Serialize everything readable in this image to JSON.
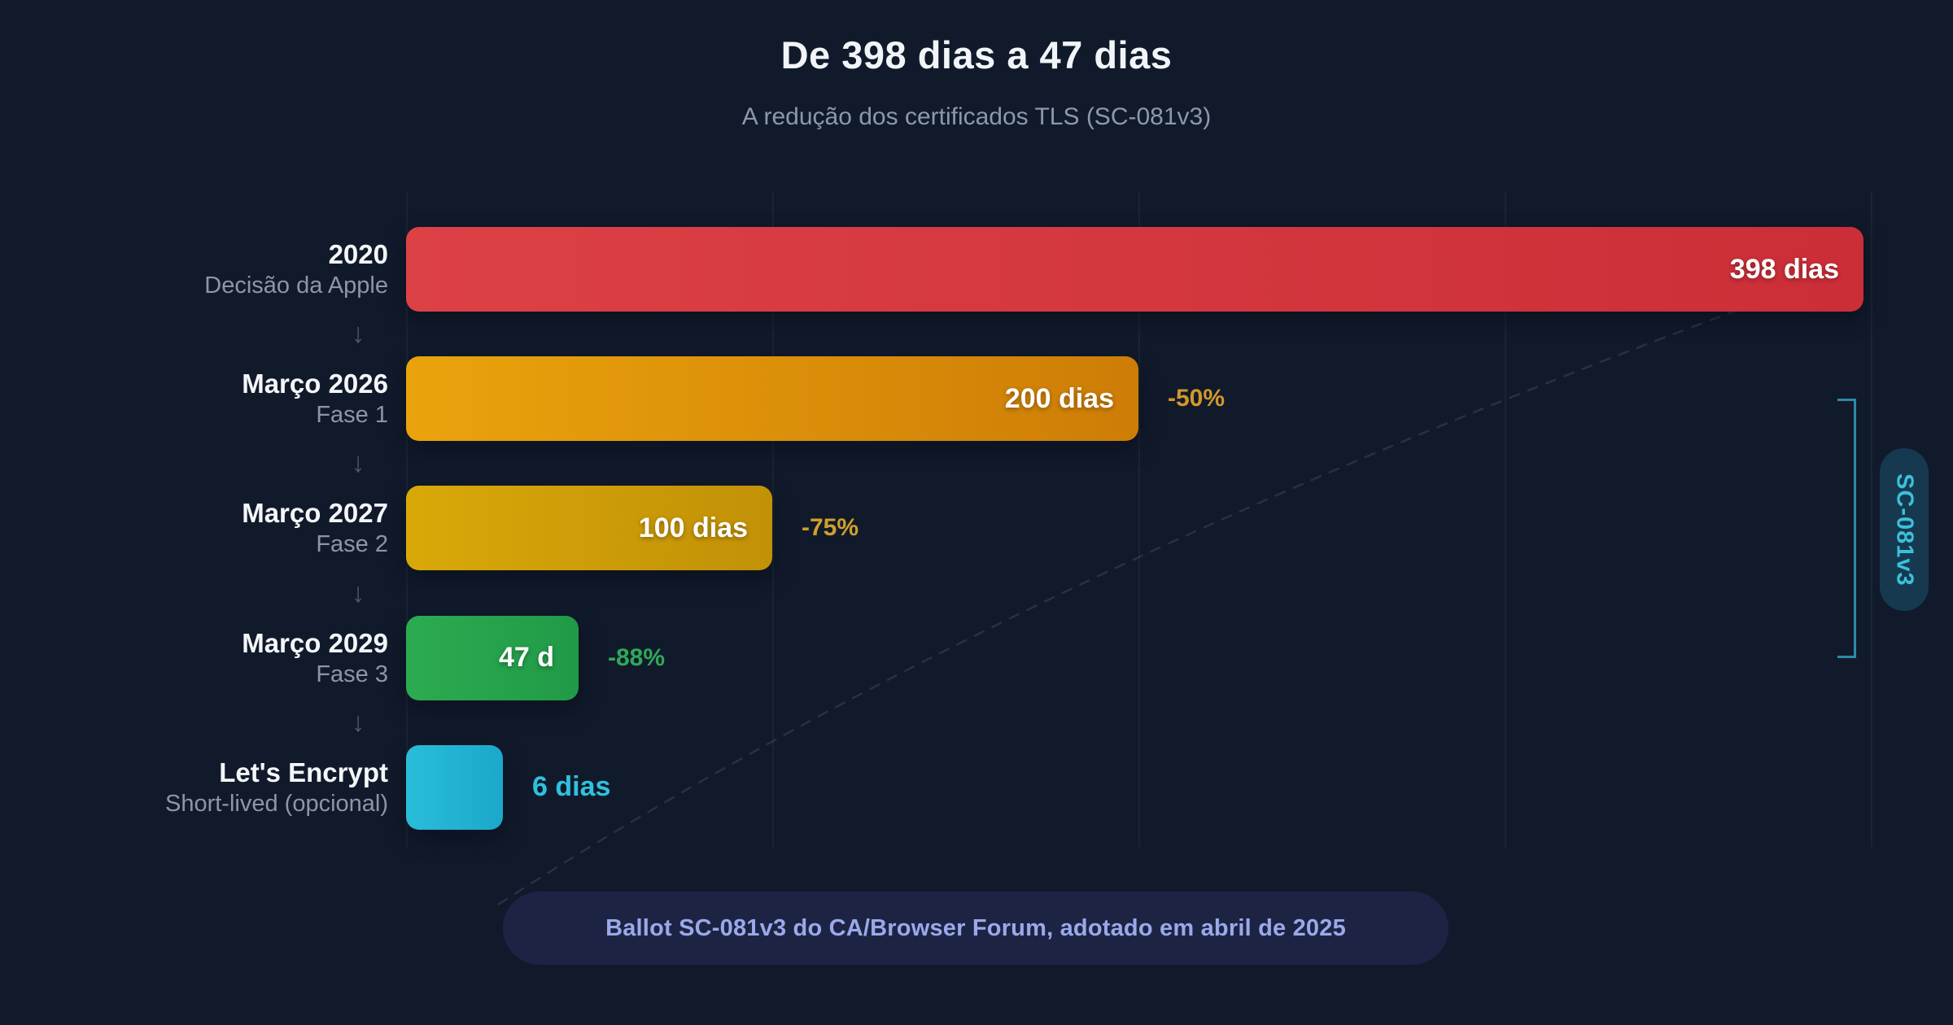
{
  "title": "De 398 dias a 47 dias",
  "subtitle": "A redução dos certificados TLS (SC-081v3)",
  "footer_note": "Ballot SC-081v3 do CA/Browser Forum, adotado em abril de 2025",
  "side_tag_label": "SC-081v3",
  "arrow_glyph": "↓",
  "colors": {
    "background": "#111a2b",
    "title_text": "#f2f5f8",
    "subtitle_text": "#8d98ad",
    "row_label_text": "#f4f6f8",
    "row_sublabel_text": "#8d96a8",
    "arrow": "#4d576c",
    "gridline": "rgba(148,163,184,0.07)",
    "dashed_curve": "rgba(130,145,170,0.20)",
    "bracket": "#2e89a8",
    "side_tag_bg": "#16394f",
    "side_tag_text": "#3bc0dc",
    "footer_bg": "#1d2443",
    "footer_text": "#9aa9ea",
    "bar_value_text": "#ffffff"
  },
  "chart_data": {
    "type": "bar",
    "orientation": "horizontal",
    "title": "De 398 dias a 47 dias",
    "subtitle": "A redução dos certificados TLS (SC-081v3)",
    "x_axis": {
      "unit": "dias",
      "min": 0,
      "max": 400,
      "gridlines_days": [
        0,
        100,
        200,
        300,
        400
      ],
      "gridlines_visible": true,
      "tick_labels_visible": false
    },
    "bars": [
      {
        "label": "2020",
        "sublabel": "Decisão da Apple",
        "days": 398,
        "value_label": "398 dias",
        "value_position": "inside",
        "color_from": "#dc4146",
        "color_to": "#cc2e37",
        "delta_label": "",
        "delta_color": ""
      },
      {
        "label": "Março 2026",
        "sublabel": "Fase 1",
        "days": 200,
        "value_label": "200 dias",
        "value_position": "inside",
        "color_from": "#eaa30c",
        "color_to": "#cd7d06",
        "delta_label": "-50%",
        "delta_color": "#d2982a"
      },
      {
        "label": "Março 2027",
        "sublabel": "Fase 2",
        "days": 100,
        "value_label": "100 dias",
        "value_position": "inside",
        "color_from": "#d9a808",
        "color_to": "#c29107",
        "delta_label": "-75%",
        "delta_color": "#cfa02c"
      },
      {
        "label": "Março 2029",
        "sublabel": "Fase 3",
        "days": 47,
        "value_label": "47 d",
        "value_position": "inside",
        "color_from": "#2cab51",
        "color_to": "#219a47",
        "delta_label": "-88%",
        "delta_color": "#2fa958"
      },
      {
        "label": "Let's Encrypt",
        "sublabel": "Short-lived (opcional)",
        "days": 6,
        "value_label": "6 dias",
        "value_position": "outside",
        "color_from": "#2abdda",
        "color_to": "#1ba8ca",
        "delta_label": "",
        "delta_color": "",
        "value_color": "#30c1dd"
      }
    ],
    "bracket": {
      "from_bar_index": 1,
      "to_bar_index": 3,
      "label": "SC-081v3"
    },
    "annotation": "Ballot SC-081v3 do CA/Browser Forum, adotado em abril de 2025",
    "legend": null
  }
}
